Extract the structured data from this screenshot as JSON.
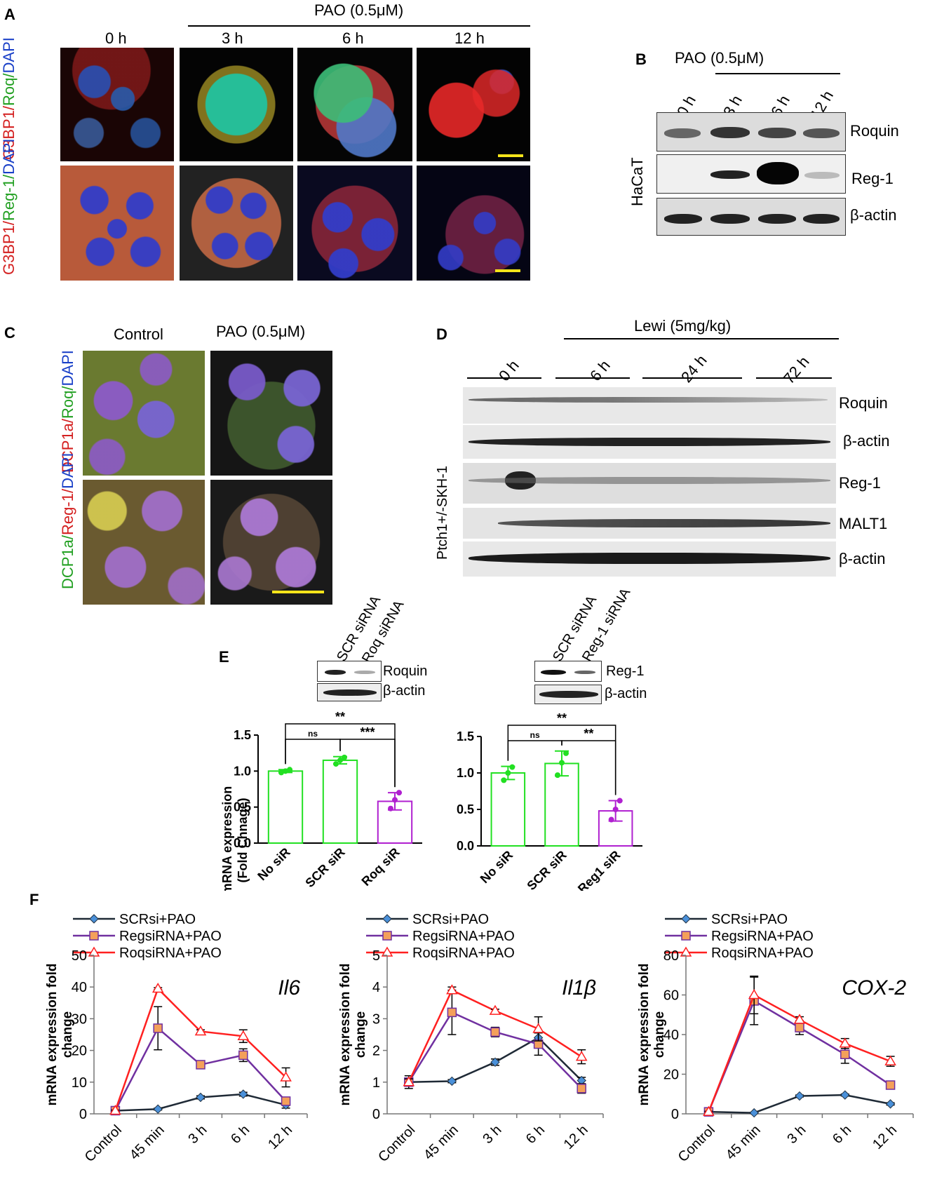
{
  "panelA": {
    "label": "A",
    "treatment": "PAO (0.5μM)",
    "timepoints": [
      "0 h",
      "3 h",
      "6 h",
      "12 h"
    ],
    "row1_stain": [
      "G3BP1/",
      "Roq/",
      "DAPI"
    ],
    "row2_stain": [
      "G3BP1/",
      "Reg-1/",
      "DAPI"
    ],
    "colors": {
      "red": "#d42020",
      "green": "#22a022",
      "blue": "#1a40c8",
      "scalebar": "#f4e41a"
    }
  },
  "panelB": {
    "label": "B",
    "treatment": "PAO (0.5μM)",
    "lanes": [
      "0 h",
      "3 h",
      "6 h",
      "12 h"
    ],
    "cell_line": "HaCaT",
    "rows": [
      "Roquin",
      "Reg-1",
      "β-actin"
    ]
  },
  "panelC": {
    "label": "C",
    "columns": [
      "Control",
      "PAO (0.5μM)"
    ],
    "row1_stain": [
      "DCP1a/",
      "Roq/",
      "DAPI"
    ],
    "row2_stain": [
      "DCP1a/",
      "Reg-1/",
      "DAPI"
    ]
  },
  "panelD": {
    "label": "D",
    "treatment": "Lewi (5mg/kg)",
    "groups": [
      "0 h",
      "6 h",
      "24 h",
      "72 h"
    ],
    "model": "Ptch1+/-SKH-1",
    "rows": [
      "Roquin",
      "β-actin",
      "Reg-1",
      "MALT1",
      "β-actin"
    ]
  },
  "panelE": {
    "label": "E",
    "left_lanes": [
      "SCR siRNA",
      "Roq siRNA"
    ],
    "left_rows": [
      "Roquin",
      "β-actin"
    ],
    "right_lanes": [
      "SCR siRNA",
      "Reg-1 siRNA"
    ],
    "right_rows": [
      "Reg-1",
      "β-actin"
    ],
    "ylabel_line1": "mRNA expression",
    "ylabel_line2": "(Fold Chnage)"
  },
  "panelF": {
    "label": "F",
    "legend": [
      "SCRsi+PAO",
      "RegsiRNA+PAO",
      "RoqsiRNA+PAO"
    ],
    "ylabel_line1": "mRNA expression fold",
    "ylabel_line2": "change",
    "series_colors": [
      "#1f2a36",
      "#7030a0",
      "#ff2020"
    ],
    "marker_fill": [
      "#4a90d9",
      "#f4a05a",
      "#ffffff"
    ]
  },
  "chart_data": [
    {
      "type": "bar",
      "panel": "E-left",
      "categories": [
        "No siR",
        "SCR siR",
        "Roq siR"
      ],
      "values": [
        1.0,
        1.15,
        0.58
      ],
      "errors": [
        0.02,
        0.05,
        0.12
      ],
      "points": [
        [
          0.98,
          1.0,
          1.02
        ],
        [
          1.1,
          1.15,
          1.19
        ],
        [
          0.48,
          0.6,
          0.7
        ]
      ],
      "bar_colors": [
        "#22e022",
        "#22e022",
        "#b020d0"
      ],
      "ylim": [
        0,
        1.5
      ],
      "yticks": [
        "0.0",
        "0.5",
        "1.0",
        "1.5"
      ],
      "sig": [
        {
          "from": 0,
          "to": 1,
          "label": "ns"
        },
        {
          "from": 1,
          "to": 2,
          "label": "***"
        },
        {
          "from": 0,
          "to": 2,
          "label": "**"
        }
      ]
    },
    {
      "type": "bar",
      "panel": "E-right",
      "categories": [
        "No siR",
        "SCR siR",
        "Reg1 siR"
      ],
      "values": [
        1.0,
        1.13,
        0.48
      ],
      "errors": [
        0.09,
        0.17,
        0.14
      ],
      "points": [
        [
          0.9,
          1.0,
          1.08
        ],
        [
          0.97,
          1.14,
          1.27
        ],
        [
          0.36,
          0.5,
          0.62
        ]
      ],
      "bar_colors": [
        "#22e022",
        "#22e022",
        "#b020d0"
      ],
      "ylim": [
        0,
        1.5
      ],
      "yticks": [
        "0.0",
        "0.5",
        "1.0",
        "1.5"
      ],
      "sig": [
        {
          "from": 0,
          "to": 1,
          "label": "ns"
        },
        {
          "from": 1,
          "to": 2,
          "label": "**"
        },
        {
          "from": 0,
          "to": 2,
          "label": "**"
        }
      ]
    },
    {
      "type": "line",
      "panel": "F-1",
      "gene": "Il6",
      "x": [
        "Control",
        "45 min",
        "3 h",
        "6 h",
        "12 h"
      ],
      "ylim": [
        0,
        50
      ],
      "yticks": [
        "0",
        "10",
        "20",
        "30",
        "40",
        "50"
      ],
      "series": [
        {
          "name": "SCRsi+PAO",
          "values": [
            1,
            1.5,
            5.2,
            6.2,
            2.8
          ],
          "errors": [
            0.2,
            0.3,
            0.5,
            0.6,
            1.0
          ]
        },
        {
          "name": "RegsiRNA+PAO",
          "values": [
            1,
            27,
            15.5,
            18.5,
            4
          ],
          "errors": [
            0.2,
            6.8,
            1.2,
            2.0,
            1.0
          ]
        },
        {
          "name": "RoqsiRNA+PAO",
          "values": [
            1,
            39.5,
            26,
            24.5,
            11.5
          ],
          "errors": [
            0.2,
            0.3,
            0.5,
            2.0,
            3.0
          ]
        }
      ]
    },
    {
      "type": "line",
      "panel": "F-2",
      "gene": "Il1β",
      "x": [
        "Control",
        "45 min",
        "3 h",
        "6 h",
        "12 h"
      ],
      "ylim": [
        0,
        5
      ],
      "yticks": [
        "0",
        "1",
        "2",
        "3",
        "4",
        "5"
      ],
      "series": [
        {
          "name": "SCRsi+PAO",
          "values": [
            1,
            1.03,
            1.63,
            2.4,
            1.05
          ],
          "errors": [
            0.05,
            0.05,
            0.1,
            0.15,
            0.1
          ]
        },
        {
          "name": "RegsiRNA+PAO",
          "values": [
            1,
            3.2,
            2.58,
            2.2,
            0.8
          ],
          "errors": [
            0.2,
            0.7,
            0.15,
            0.35,
            0.15
          ]
        },
        {
          "name": "RoqsiRNA+PAO",
          "values": [
            1,
            3.9,
            3.25,
            2.68,
            1.8
          ],
          "errors": [
            0.1,
            0.1,
            0.05,
            0.38,
            0.22
          ]
        }
      ]
    },
    {
      "type": "line",
      "panel": "F-3",
      "gene": "COX-2",
      "x": [
        "Control",
        "45 min",
        "3 h",
        "6 h",
        "12 h"
      ],
      "ylim": [
        0,
        80
      ],
      "yticks": [
        "0",
        "20",
        "40",
        "60",
        "80"
      ],
      "series": [
        {
          "name": "SCRsi+PAO",
          "values": [
            1,
            0.5,
            9,
            9.5,
            5
          ],
          "errors": [
            0.3,
            0.3,
            0.5,
            0.5,
            0.6
          ]
        },
        {
          "name": "RegsiRNA+PAO",
          "values": [
            1,
            57,
            43.5,
            30,
            14.5
          ],
          "errors": [
            0.3,
            12,
            3.5,
            4.5,
            2.0
          ]
        },
        {
          "name": "RoqsiRNA+PAO",
          "values": [
            1,
            60,
            47.5,
            35.5,
            26.5
          ],
          "errors": [
            0.3,
            9.5,
            1.5,
            2.5,
            2.5
          ]
        }
      ]
    }
  ]
}
